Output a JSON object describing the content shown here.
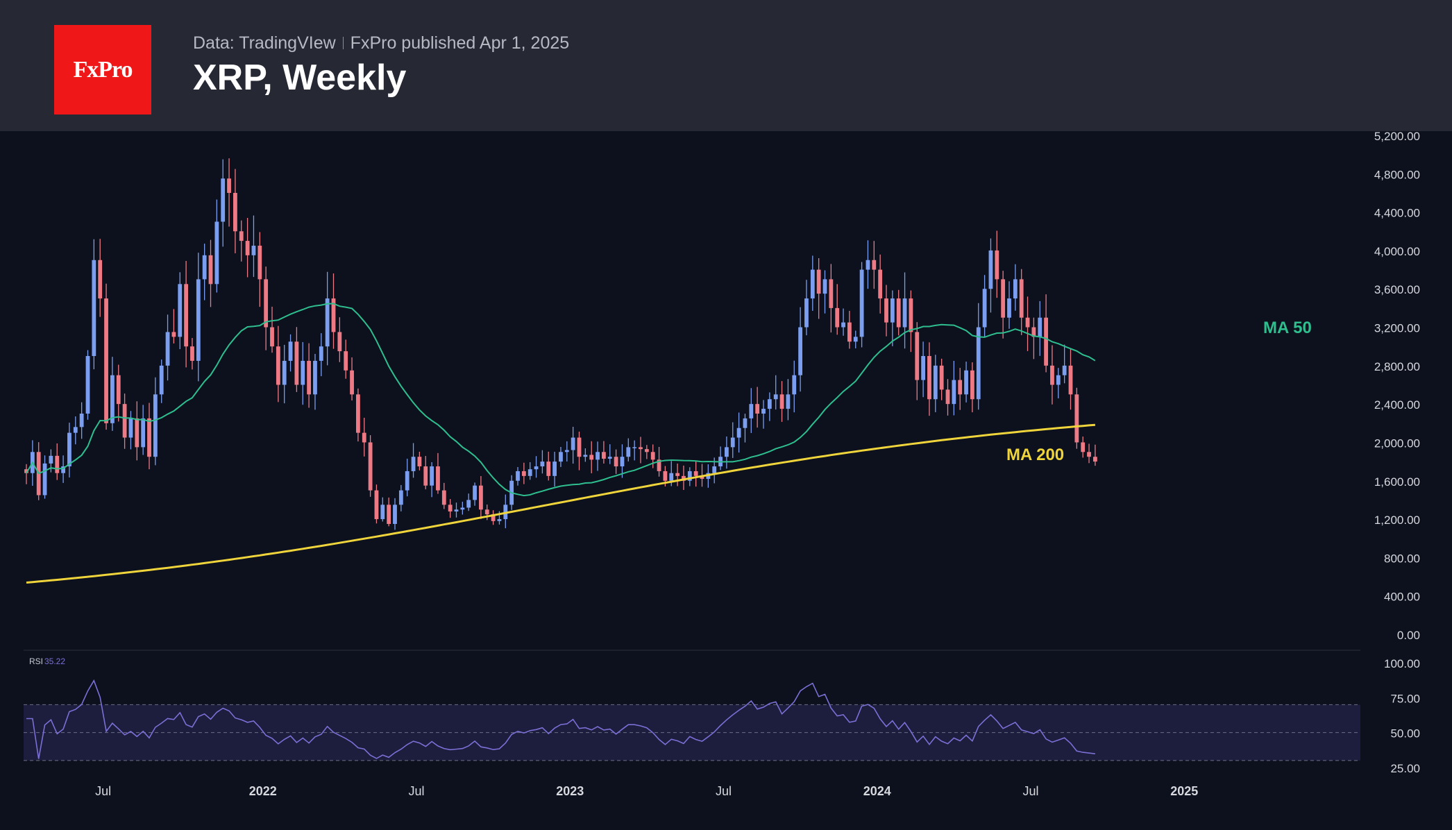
{
  "header": {
    "logo": "FxPro",
    "source": "Data: TradingVIew",
    "published": "FxPro published Apr 1, 2025",
    "title": "XRP, Weekly"
  },
  "colors": {
    "up": "#7b9ef0",
    "down": "#ee7a85",
    "ma50": "#2fbf8f",
    "ma200": "#efd43b",
    "rsi": "#7c6fd6",
    "rsi_band": "#1d1d3d"
  },
  "chart_data": {
    "type": "candlestick",
    "timeframe": "weekly",
    "ylim": [
      0,
      5200
    ],
    "y_ticks": [
      "5,200.00",
      "4,800.00",
      "4,400.00",
      "4,000.00",
      "3,600.00",
      "3,200.00",
      "2,800.00",
      "2,400.00",
      "2,000.00",
      "1,600.00",
      "1,200.00",
      "800.00",
      "400.00",
      "0.00"
    ],
    "x_ticks": [
      "Jul",
      "2022",
      "Jul",
      "2023",
      "Jul",
      "2024",
      "Jul",
      "2025"
    ],
    "x_tick_weeks": [
      12.5,
      38.5,
      63.5,
      88.5,
      113.5,
      138.5,
      163.5,
      188.5
    ],
    "closes": [
      1680,
      1900,
      1450,
      1780,
      1860,
      1680,
      1750,
      2100,
      2160,
      2300,
      2900,
      3900,
      3500,
      2200,
      2700,
      2400,
      2050,
      2250,
      1950,
      2250,
      1850,
      2500,
      2800,
      3150,
      3100,
      3650,
      3000,
      2850,
      3700,
      3950,
      3650,
      4300,
      4750,
      4600,
      4200,
      4100,
      3950,
      4050,
      3700,
      3200,
      3000,
      2600,
      2850,
      3050,
      2600,
      2850,
      2500,
      2850,
      3000,
      3500,
      3150,
      2950,
      2750,
      2500,
      2100,
      2000,
      1500,
      1200,
      1350,
      1150,
      1350,
      1500,
      1700,
      1850,
      1750,
      1550,
      1750,
      1500,
      1350,
      1280,
      1300,
      1320,
      1400,
      1550,
      1300,
      1250,
      1180,
      1200,
      1350,
      1600,
      1700,
      1650,
      1720,
      1750,
      1800,
      1650,
      1800,
      1900,
      1920,
      2050,
      1850,
      1870,
      1820,
      1900,
      1830,
      1850,
      1750,
      1850,
      1950,
      1950,
      1930,
      1900,
      1820,
      1700,
      1600,
      1680,
      1650,
      1600,
      1700,
      1650,
      1620,
      1680,
      1750,
      1850,
      1950,
      2050,
      2150,
      2250,
      2400,
      2300,
      2350,
      2450,
      2500,
      2350,
      2500,
      2700,
      3200,
      3500,
      3800,
      3550,
      3700,
      3400,
      3200,
      3250,
      3050,
      3100,
      3800,
      3900,
      3800,
      3500,
      3250,
      3500,
      3200,
      3500,
      3150,
      2650,
      2900,
      2450,
      2800,
      2550,
      2400,
      2650,
      2500,
      2750,
      2450,
      3200,
      3600,
      4000,
      3700,
      3300,
      3500,
      3700,
      3300,
      3200,
      3100,
      3300,
      2800,
      2600,
      2700,
      2800,
      2500,
      2000,
      1900,
      1850,
      1800
    ],
    "rsi": {
      "label": "RSI",
      "value": "35.22",
      "y_ticks": [
        "100.00",
        "75.00",
        "50.00",
        "25.00"
      ],
      "band": [
        30,
        70
      ]
    },
    "annotations": [
      {
        "text": "MA 50",
        "series": "ma50"
      },
      {
        "text": "MA 200",
        "series": "ma200"
      }
    ]
  }
}
